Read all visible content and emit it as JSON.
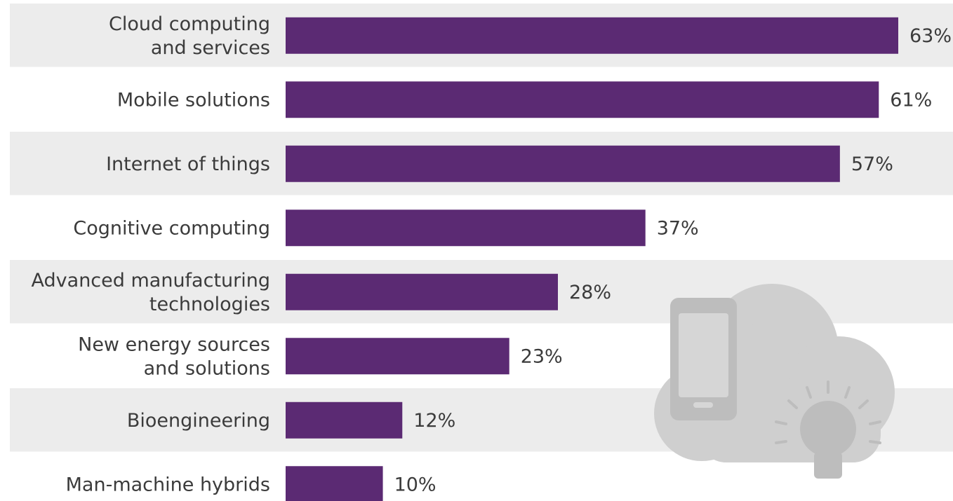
{
  "chart_data": {
    "type": "bar",
    "orientation": "horizontal",
    "categories": [
      [
        "Cloud computing",
        "and services"
      ],
      [
        "Mobile solutions"
      ],
      [
        "Internet of things"
      ],
      [
        "Cognitive computing"
      ],
      [
        "Advanced manufacturing",
        "technologies"
      ],
      [
        "New energy sources",
        "and solutions"
      ],
      [
        "Bioengineering"
      ],
      [
        "Man-machine hybrids"
      ]
    ],
    "values": [
      63,
      61,
      57,
      37,
      28,
      23,
      12,
      10
    ],
    "value_labels": [
      "63%",
      "61%",
      "57%",
      "37%",
      "28%",
      "23%",
      "12%",
      "10%"
    ],
    "xlim": [
      0,
      63
    ],
    "grid": false,
    "legend": "none",
    "row_banding": true,
    "decoration": "cloud-phone-lightbulb-icon"
  },
  "colors": {
    "bar": "#5b2a73",
    "band": "#ececec",
    "text": "#3b3b3b",
    "icon": "#cfcfcf",
    "icon_dark": "#bdbdbd"
  }
}
